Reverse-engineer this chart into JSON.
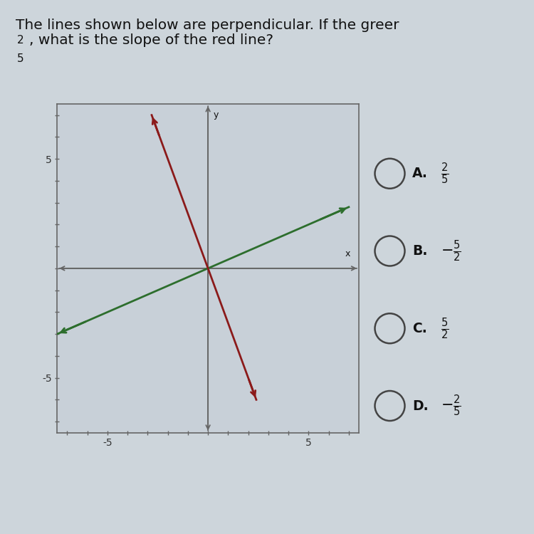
{
  "title_line1": "The lines shown below are perpendicular. If the greer",
  "title_line2": ", what is the slope of the red line?",
  "bg_color": "#cdd5db",
  "box_bg_color": "#c8d0d8",
  "green_slope": 0.4,
  "red_slope": -2.5,
  "xlim": [
    -7.5,
    7.5
  ],
  "ylim": [
    -7.5,
    7.5
  ],
  "green_color": "#2d6e2d",
  "red_color": "#8b1a1a",
  "axis_color": "#666666",
  "font_color": "#111111",
  "tick_label_color": "#333333",
  "answer_A_label": "A.",
  "answer_A_frac": "\\frac{2}{5}",
  "answer_B_label": "B.",
  "answer_B_frac": "\\frac{5}{2}",
  "answer_C_label": "C.",
  "answer_C_frac": "\\frac{5}{2}",
  "answer_D_label": "D.",
  "answer_D_frac": "\\frac{2}{5}",
  "answer_B_neg": true,
  "answer_D_neg": true
}
